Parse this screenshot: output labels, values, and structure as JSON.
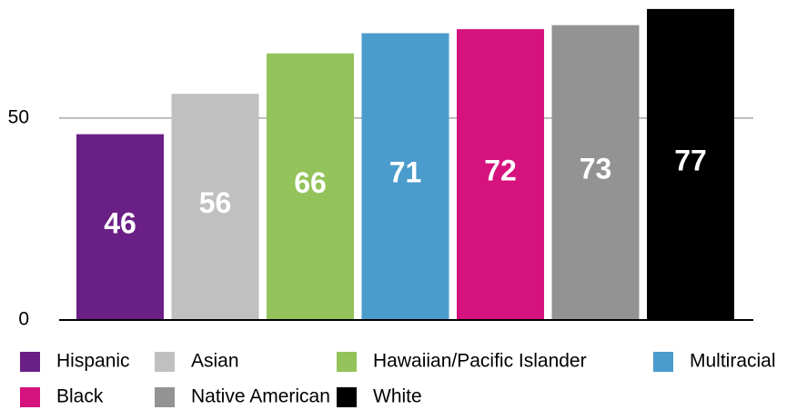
{
  "chart_data": {
    "type": "bar",
    "categories": [
      "Hispanic",
      "Asian",
      "Hawaiian/Pacific Islander",
      "Multiracial",
      "Black",
      "Native American",
      "White"
    ],
    "values": [
      46,
      56,
      66,
      71,
      72,
      73,
      77
    ],
    "colors": [
      "#6a1f86",
      "#c0c0c0",
      "#93c35a",
      "#4a9ccc",
      "#d5127d",
      "#939393",
      "#000000"
    ],
    "ylim": [
      0,
      79
    ],
    "yticks": [
      0,
      50
    ],
    "grid": true
  }
}
